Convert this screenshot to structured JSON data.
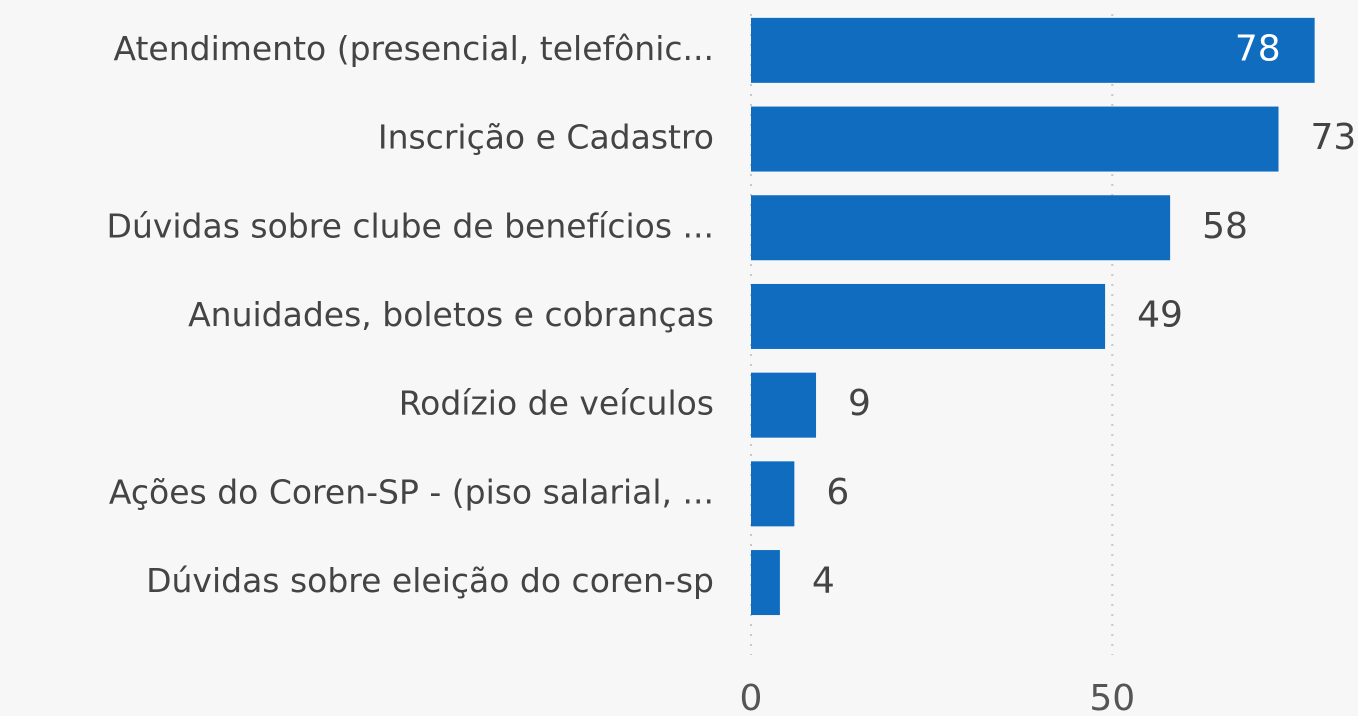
{
  "chart_data": {
    "type": "barh",
    "categories": [
      "Atendimento (presencial, telefônic...",
      "Inscrição e Cadastro",
      "Dúvidas sobre clube de benefícios ...",
      "Anuidades, boletos e cobranças",
      "Rodízio de veículos",
      "Ações do Coren-SP - (piso salarial, ...",
      "Dúvidas sobre eleição do coren-sp"
    ],
    "values": [
      78,
      73,
      58,
      49,
      9,
      6,
      4
    ],
    "color": "#0f6cbf",
    "xlim": [
      0,
      84
    ],
    "xticks": [
      0,
      50
    ],
    "grid": true
  }
}
